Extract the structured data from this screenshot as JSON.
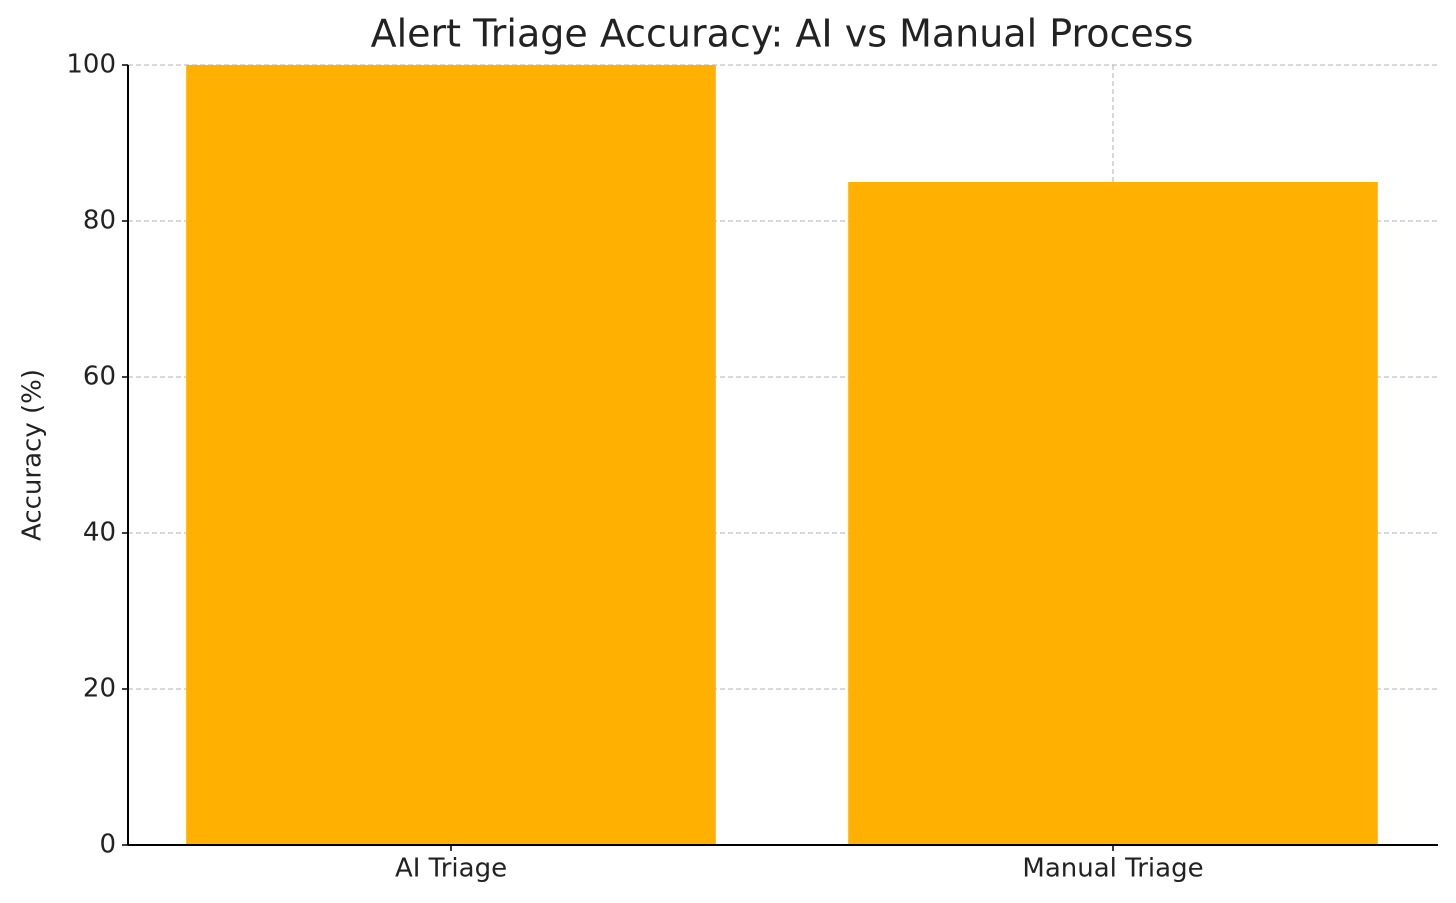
{
  "chart_data": {
    "type": "bar",
    "title": "Alert Triage Accuracy: AI vs Manual Process",
    "y_label": "Accuracy (%)",
    "categories": [
      "AI Triage",
      "Manual Triage"
    ],
    "values": [
      100,
      85
    ],
    "color": "#ffb000",
    "ylim": [
      0,
      100
    ],
    "yticks": [
      0,
      20,
      40,
      60,
      80,
      100
    ],
    "grid": true
  }
}
